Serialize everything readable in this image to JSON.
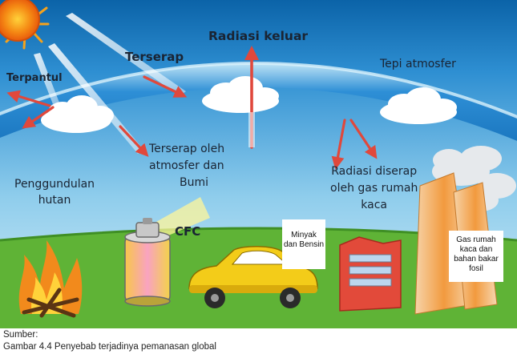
{
  "labels": {
    "terpantul": "Terpantul",
    "terserap": "Terserap",
    "radiasi_keluar": "Radiasi keluar",
    "tepi_atmosfer": "Tepi atmosfer",
    "terserap_oleh": [
      "Terserap oleh",
      "atmosfer dan",
      "Bumi"
    ],
    "penggundulan": [
      "Penggundulan",
      "hutan"
    ],
    "radiasi_diserap": [
      "Radiasi diserap",
      "oleh gas rumah",
      "kaca"
    ],
    "cfc": "CFC",
    "minyak": [
      "Minyak",
      "dan Bensin"
    ],
    "gas_rumah_kaca": [
      "Gas rumah",
      "kaca dan",
      "bahan bakar",
      "fosil"
    ]
  },
  "caption": {
    "source": "Sumber:",
    "title": "Gambar 4.4 Penyebab terjadinya pemanasan global"
  },
  "colors": {
    "sky_top": "#0e6fb5",
    "sky_bottom": "#bfe3f4",
    "atmosphere_band": "#1f86cc",
    "ground": "#5fb336",
    "sun": "#f07a12",
    "arrow": "#e0483c",
    "car": "#f3cc19",
    "factory": "#e24a3a"
  }
}
